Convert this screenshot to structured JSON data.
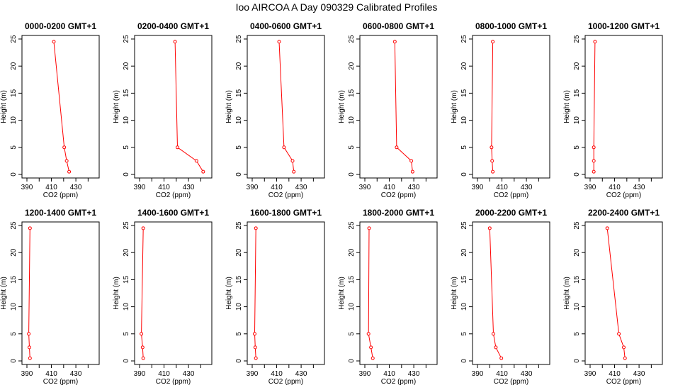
{
  "figure": {
    "title": "Ioo AIRCOA A  Day 090329  Calibrated Profiles"
  },
  "colors": {
    "series": "#ff0000",
    "axis": "#000000",
    "background": "#ffffff"
  },
  "chart_data": [
    {
      "type": "line",
      "title": "0000-0200 GMT+1",
      "xlabel": "CO2 (ppm)",
      "ylabel": "Height (m)",
      "xlim": [
        390,
        445
      ],
      "ylim": [
        0,
        25
      ],
      "xticks": [
        390,
        410,
        430
      ],
      "yticks": [
        0,
        5,
        10,
        15,
        20,
        25
      ],
      "grid": false,
      "x": [
        412.0,
        420.5,
        422.5,
        424.5
      ],
      "y": [
        24.5,
        5.0,
        2.5,
        0.5
      ]
    },
    {
      "type": "line",
      "title": "0200-0400 GMT+1",
      "xlabel": "CO2 (ppm)",
      "ylabel": "Height (m)",
      "xlim": [
        390,
        445
      ],
      "ylim": [
        0,
        25
      ],
      "xticks": [
        390,
        410,
        430
      ],
      "yticks": [
        0,
        5,
        10,
        15,
        20,
        25
      ],
      "grid": false,
      "x": [
        419.0,
        421.0,
        436.5,
        442.0
      ],
      "y": [
        24.5,
        5.0,
        2.5,
        0.5
      ]
    },
    {
      "type": "line",
      "title": "0400-0600 GMT+1",
      "xlabel": "CO2 (ppm)",
      "ylabel": "Height (m)",
      "xlim": [
        390,
        445
      ],
      "ylim": [
        0,
        25
      ],
      "xticks": [
        390,
        410,
        430
      ],
      "yticks": [
        0,
        5,
        10,
        15,
        20,
        25
      ],
      "grid": false,
      "x": [
        412.0,
        416.0,
        423.0,
        424.0
      ],
      "y": [
        24.5,
        5.0,
        2.5,
        0.5
      ]
    },
    {
      "type": "line",
      "title": "0600-0800 GMT+1",
      "xlabel": "CO2 (ppm)",
      "ylabel": "Height (m)",
      "xlim": [
        390,
        445
      ],
      "ylim": [
        0,
        25
      ],
      "xticks": [
        390,
        410,
        430
      ],
      "yticks": [
        0,
        5,
        10,
        15,
        20,
        25
      ],
      "grid": false,
      "x": [
        414.5,
        416.0,
        428.0,
        429.0
      ],
      "y": [
        24.5,
        5.0,
        2.5,
        0.5
      ]
    },
    {
      "type": "line",
      "title": "0800-1000 GMT+1",
      "xlabel": "CO2 (ppm)",
      "ylabel": "Height (m)",
      "xlim": [
        390,
        445
      ],
      "ylim": [
        0,
        25
      ],
      "xticks": [
        390,
        410,
        430
      ],
      "yticks": [
        0,
        5,
        10,
        15,
        20,
        25
      ],
      "grid": false,
      "x": [
        402.5,
        401.5,
        402.0,
        402.5
      ],
      "y": [
        24.5,
        5.0,
        2.5,
        0.5
      ]
    },
    {
      "type": "line",
      "title": "1000-1200 GMT+1",
      "xlabel": "CO2 (ppm)",
      "ylabel": "Height (m)",
      "xlim": [
        390,
        445
      ],
      "ylim": [
        0,
        25
      ],
      "xticks": [
        390,
        410,
        430
      ],
      "yticks": [
        0,
        5,
        10,
        15,
        20,
        25
      ],
      "grid": false,
      "x": [
        394.0,
        393.0,
        393.0,
        393.0
      ],
      "y": [
        24.5,
        5.0,
        2.5,
        0.5
      ]
    },
    {
      "type": "line",
      "title": "1200-1400 GMT+1",
      "xlabel": "CO2 (ppm)",
      "ylabel": "Height (m)",
      "xlim": [
        390,
        445
      ],
      "ylim": [
        0,
        25
      ],
      "xticks": [
        390,
        410,
        430
      ],
      "yticks": [
        0,
        5,
        10,
        15,
        20,
        25
      ],
      "grid": false,
      "x": [
        392.5,
        391.5,
        392.0,
        392.5
      ],
      "y": [
        24.5,
        5.0,
        2.5,
        0.5
      ]
    },
    {
      "type": "line",
      "title": "1400-1600 GMT+1",
      "xlabel": "CO2 (ppm)",
      "ylabel": "Height (m)",
      "xlim": [
        390,
        445
      ],
      "ylim": [
        0,
        25
      ],
      "xticks": [
        390,
        410,
        430
      ],
      "yticks": [
        0,
        5,
        10,
        15,
        20,
        25
      ],
      "grid": false,
      "x": [
        393.0,
        391.5,
        392.5,
        393.0
      ],
      "y": [
        24.5,
        5.0,
        2.5,
        0.5
      ]
    },
    {
      "type": "line",
      "title": "1600-1800 GMT+1",
      "xlabel": "CO2 (ppm)",
      "ylabel": "Height (m)",
      "xlim": [
        390,
        445
      ],
      "ylim": [
        0,
        25
      ],
      "xticks": [
        390,
        410,
        430
      ],
      "yticks": [
        0,
        5,
        10,
        15,
        20,
        25
      ],
      "grid": false,
      "x": [
        393.0,
        392.0,
        392.5,
        393.0
      ],
      "y": [
        24.5,
        5.0,
        2.5,
        0.5
      ]
    },
    {
      "type": "line",
      "title": "1800-2000 GMT+1",
      "xlabel": "CO2 (ppm)",
      "ylabel": "Height (m)",
      "xlim": [
        390,
        445
      ],
      "ylim": [
        0,
        25
      ],
      "xticks": [
        390,
        410,
        430
      ],
      "yticks": [
        0,
        5,
        10,
        15,
        20,
        25
      ],
      "grid": false,
      "x": [
        393.5,
        393.0,
        395.0,
        396.5
      ],
      "y": [
        24.5,
        5.0,
        2.5,
        0.5
      ]
    },
    {
      "type": "line",
      "title": "2000-2200 GMT+1",
      "xlabel": "CO2 (ppm)",
      "ylabel": "Height (m)",
      "xlim": [
        390,
        445
      ],
      "ylim": [
        0,
        25
      ],
      "xticks": [
        390,
        410,
        430
      ],
      "yticks": [
        0,
        5,
        10,
        15,
        20,
        25
      ],
      "grid": false,
      "x": [
        400.0,
        403.0,
        405.0,
        409.5
      ],
      "y": [
        24.5,
        5.0,
        2.5,
        0.5
      ]
    },
    {
      "type": "line",
      "title": "2200-2400 GMT+1",
      "xlabel": "CO2 (ppm)",
      "ylabel": "Height (m)",
      "xlim": [
        390,
        445
      ],
      "ylim": [
        0,
        25
      ],
      "xticks": [
        390,
        410,
        430
      ],
      "yticks": [
        0,
        5,
        10,
        15,
        20,
        25
      ],
      "grid": false,
      "x": [
        404.0,
        413.5,
        417.5,
        418.5
      ],
      "y": [
        24.5,
        5.0,
        2.5,
        0.5
      ]
    }
  ]
}
